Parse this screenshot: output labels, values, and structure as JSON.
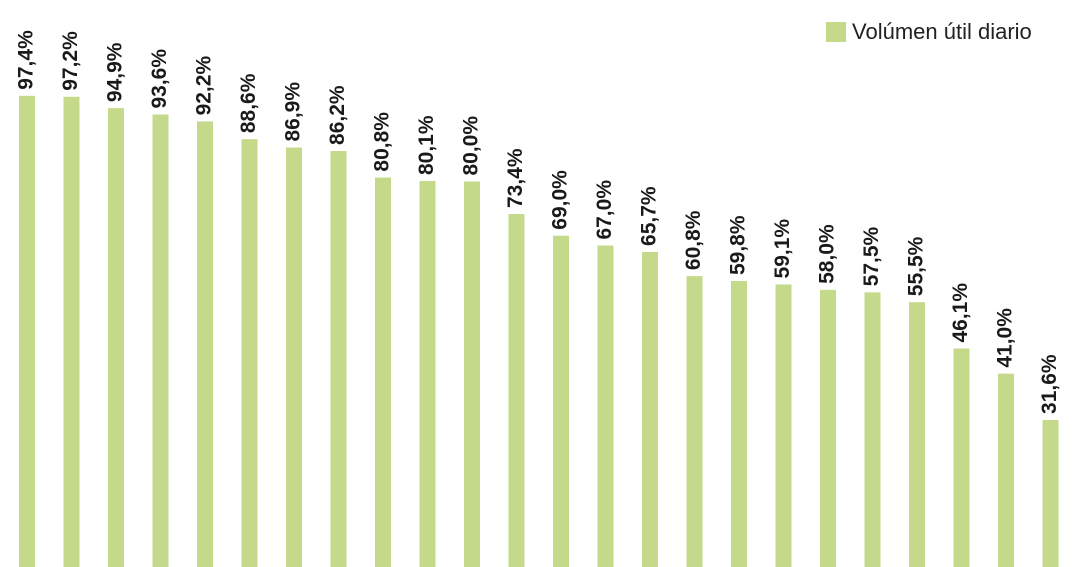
{
  "chart_data": {
    "type": "bar",
    "series": [
      {
        "name": "Volúmen útil diario",
        "color": "#c5d98b",
        "values": [
          97.4,
          97.2,
          94.9,
          93.6,
          92.2,
          88.6,
          86.9,
          86.2,
          80.8,
          80.1,
          80.0,
          73.4,
          69.0,
          67.0,
          65.7,
          60.8,
          59.8,
          59.1,
          58.0,
          57.5,
          55.5,
          46.1,
          41.0,
          31.6
        ],
        "value_labels": [
          "97,4%",
          "97,2%",
          "94,9%",
          "93,6%",
          "92,2%",
          "88,6%",
          "86,9%",
          "86,2%",
          "80,8%",
          "80,1%",
          "80,0%",
          "73,4%",
          "69,0%",
          "67,0%",
          "65,7%",
          "60,8%",
          "59,8%",
          "59,1%",
          "58,0%",
          "57,5%",
          "55,5%",
          "46,1%",
          "41,0%",
          "31,6%"
        ]
      }
    ],
    "ylim": [
      0,
      100
    ],
    "legend": "top-right"
  }
}
